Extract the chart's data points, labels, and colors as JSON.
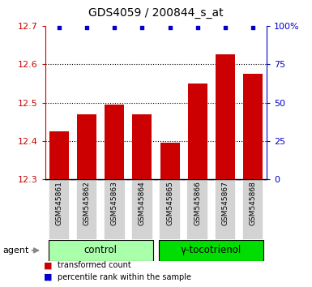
{
  "title": "GDS4059 / 200844_s_at",
  "samples": [
    "GSM545861",
    "GSM545862",
    "GSM545863",
    "GSM545864",
    "GSM545865",
    "GSM545866",
    "GSM545867",
    "GSM545868"
  ],
  "bar_values": [
    12.425,
    12.47,
    12.495,
    12.47,
    12.395,
    12.55,
    12.625,
    12.575
  ],
  "percentile_values": [
    99,
    99,
    99,
    99,
    99,
    99,
    99,
    99
  ],
  "ylim_left": [
    12.3,
    12.7
  ],
  "ylim_right": [
    0,
    100
  ],
  "yticks_left": [
    12.3,
    12.4,
    12.5,
    12.6,
    12.7
  ],
  "yticks_right": [
    0,
    25,
    50,
    75,
    100
  ],
  "yticklabels_right": [
    "0",
    "25",
    "50",
    "75",
    "100%"
  ],
  "bar_color": "#cc0000",
  "dot_color": "#0000cc",
  "bar_width": 0.7,
  "groups": [
    {
      "label": "control",
      "color": "#aaffaa",
      "start": 0,
      "end": 3
    },
    {
      "label": "γ-tocotrienol",
      "color": "#00dd00",
      "start": 4,
      "end": 7
    }
  ],
  "group_label_prefix": "agent",
  "legend_items": [
    {
      "color": "#cc0000",
      "label": "transformed count"
    },
    {
      "color": "#0000cc",
      "label": "percentile rank within the sample"
    }
  ],
  "background_color": "#ffffff",
  "plot_bg_color": "#ffffff",
  "xticklabel_bg": "#d3d3d3",
  "title_fontsize": 10,
  "left_spine_color": "#cc0000",
  "right_spine_color": "#0000cc"
}
